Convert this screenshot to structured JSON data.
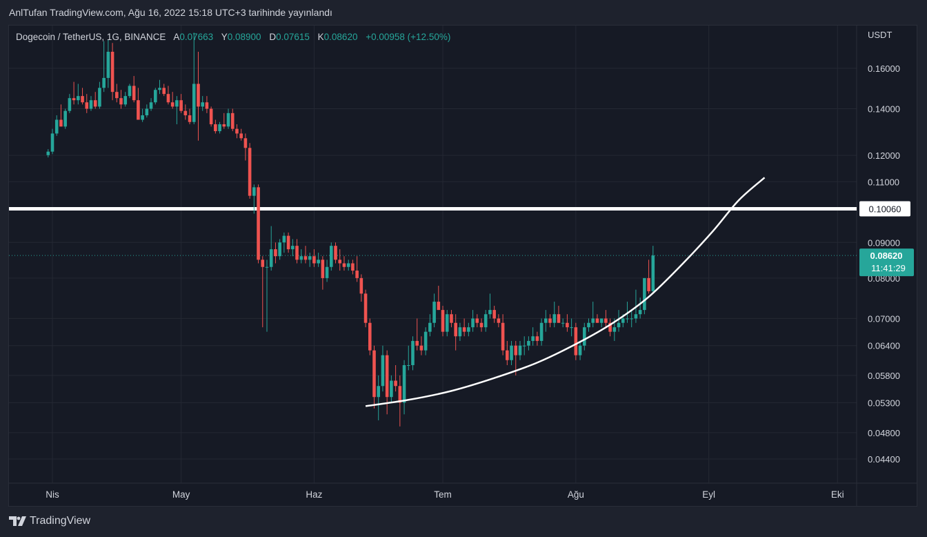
{
  "header": {
    "publish_text": "AnlTufan TradingView.com, Ağu 16, 2022 15:18 UTC+3 tarihinde yayınlandı"
  },
  "legend": {
    "symbol": "Dogecoin / TetherUS, 1G, BINANCE",
    "o_label": "A",
    "o_value": "0.07663",
    "h_label": "Y",
    "h_value": "0.08900",
    "l_label": "D",
    "l_value": "0.07615",
    "c_label": "K",
    "c_value": "0.08620",
    "change": "+0.00958 (+12.50%)"
  },
  "footer": {
    "brand": "TradingView"
  },
  "colors": {
    "up": "#26a69a",
    "down": "#ef5350",
    "grid": "#242833",
    "text": "#d1d4dc",
    "annotation": "#ffffff"
  },
  "chart_data": {
    "type": "candlestick",
    "y_scale": "log",
    "currency_label": "USDT",
    "y_ticks": [
      "0.16000",
      "0.14000",
      "0.12000",
      "0.11000",
      "0.09000",
      "0.08000",
      "0.07000",
      "0.06400",
      "0.05800",
      "0.05300",
      "0.04800",
      "0.04400"
    ],
    "x_ticks": [
      "Nis",
      "May",
      "Haz",
      "Tem",
      "Ağu",
      "Eyl",
      "Eki"
    ],
    "x_tick_dates": [
      "2022-04-01",
      "2022-05-01",
      "2022-06-01",
      "2022-07-01",
      "2022-08-01",
      "2022-09-01",
      "2022-10-01"
    ],
    "horizontal_line": {
      "price": 0.1006,
      "label": "0.10060"
    },
    "last_price": {
      "price": 0.0862,
      "label": "0.08620",
      "countdown": "11:41:29"
    },
    "curve": [
      {
        "date": "2022-06-13",
        "price": 0.0524
      },
      {
        "date": "2022-06-23",
        "price": 0.0535
      },
      {
        "date": "2022-07-03",
        "price": 0.0551
      },
      {
        "date": "2022-07-13",
        "price": 0.0575
      },
      {
        "date": "2022-07-23",
        "price": 0.0605
      },
      {
        "date": "2022-08-02",
        "price": 0.0648
      },
      {
        "date": "2022-08-10",
        "price": 0.0692
      },
      {
        "date": "2022-08-18",
        "price": 0.0752
      },
      {
        "date": "2022-08-26",
        "price": 0.084
      },
      {
        "date": "2022-09-02",
        "price": 0.0935
      },
      {
        "date": "2022-09-08",
        "price": 0.1035
      },
      {
        "date": "2022-09-14",
        "price": 0.1115
      }
    ],
    "candles": [
      {
        "d": "2022-03-31",
        "o": 0.1201,
        "h": 0.1225,
        "l": 0.1192,
        "c": 0.1215
      },
      {
        "d": "2022-04-01",
        "o": 0.1215,
        "h": 0.131,
        "l": 0.1205,
        "c": 0.129
      },
      {
        "d": "2022-04-02",
        "o": 0.129,
        "h": 0.137,
        "l": 0.128,
        "c": 0.135
      },
      {
        "d": "2022-04-03",
        "o": 0.135,
        "h": 0.142,
        "l": 0.132,
        "c": 0.132
      },
      {
        "d": "2022-04-04",
        "o": 0.132,
        "h": 0.14,
        "l": 0.131,
        "c": 0.139
      },
      {
        "d": "2022-04-05",
        "o": 0.139,
        "h": 0.147,
        "l": 0.138,
        "c": 0.145
      },
      {
        "d": "2022-04-06",
        "o": 0.145,
        "h": 0.153,
        "l": 0.142,
        "c": 0.144
      },
      {
        "d": "2022-04-07",
        "o": 0.144,
        "h": 0.152,
        "l": 0.142,
        "c": 0.146
      },
      {
        "d": "2022-04-08",
        "o": 0.146,
        "h": 0.15,
        "l": 0.142,
        "c": 0.143
      },
      {
        "d": "2022-04-09",
        "o": 0.143,
        "h": 0.147,
        "l": 0.138,
        "c": 0.14
      },
      {
        "d": "2022-04-10",
        "o": 0.14,
        "h": 0.146,
        "l": 0.139,
        "c": 0.144
      },
      {
        "d": "2022-04-11",
        "o": 0.144,
        "h": 0.148,
        "l": 0.14,
        "c": 0.141
      },
      {
        "d": "2022-04-12",
        "o": 0.141,
        "h": 0.153,
        "l": 0.14,
        "c": 0.15
      },
      {
        "d": "2022-04-13",
        "o": 0.15,
        "h": 0.175,
        "l": 0.148,
        "c": 0.155
      },
      {
        "d": "2022-04-14",
        "o": 0.155,
        "h": 0.176,
        "l": 0.15,
        "c": 0.169
      },
      {
        "d": "2022-04-15",
        "o": 0.169,
        "h": 0.174,
        "l": 0.144,
        "c": 0.148
      },
      {
        "d": "2022-04-16",
        "o": 0.148,
        "h": 0.152,
        "l": 0.143,
        "c": 0.145
      },
      {
        "d": "2022-04-17",
        "o": 0.145,
        "h": 0.149,
        "l": 0.14,
        "c": 0.142
      },
      {
        "d": "2022-04-18",
        "o": 0.142,
        "h": 0.148,
        "l": 0.141,
        "c": 0.146
      },
      {
        "d": "2022-04-19",
        "o": 0.146,
        "h": 0.152,
        "l": 0.145,
        "c": 0.151
      },
      {
        "d": "2022-04-20",
        "o": 0.151,
        "h": 0.156,
        "l": 0.143,
        "c": 0.144
      },
      {
        "d": "2022-04-21",
        "o": 0.144,
        "h": 0.15,
        "l": 0.135,
        "c": 0.135
      },
      {
        "d": "2022-04-22",
        "o": 0.135,
        "h": 0.14,
        "l": 0.134,
        "c": 0.137
      },
      {
        "d": "2022-04-23",
        "o": 0.137,
        "h": 0.142,
        "l": 0.136,
        "c": 0.14
      },
      {
        "d": "2022-04-24",
        "o": 0.14,
        "h": 0.145,
        "l": 0.139,
        "c": 0.143
      },
      {
        "d": "2022-04-25",
        "o": 0.143,
        "h": 0.15,
        "l": 0.142,
        "c": 0.149
      },
      {
        "d": "2022-04-26",
        "o": 0.149,
        "h": 0.154,
        "l": 0.147,
        "c": 0.15
      },
      {
        "d": "2022-04-27",
        "o": 0.15,
        "h": 0.152,
        "l": 0.146,
        "c": 0.147
      },
      {
        "d": "2022-04-28",
        "o": 0.147,
        "h": 0.151,
        "l": 0.142,
        "c": 0.143
      },
      {
        "d": "2022-04-29",
        "o": 0.143,
        "h": 0.148,
        "l": 0.14,
        "c": 0.141
      },
      {
        "d": "2022-04-30",
        "o": 0.141,
        "h": 0.146,
        "l": 0.133,
        "c": 0.144
      },
      {
        "d": "2022-05-01",
        "o": 0.144,
        "h": 0.147,
        "l": 0.138,
        "c": 0.139
      },
      {
        "d": "2022-05-02",
        "o": 0.139,
        "h": 0.142,
        "l": 0.135,
        "c": 0.137
      },
      {
        "d": "2022-05-03",
        "o": 0.137,
        "h": 0.14,
        "l": 0.133,
        "c": 0.134
      },
      {
        "d": "2022-05-04",
        "o": 0.134,
        "h": 0.18,
        "l": 0.133,
        "c": 0.152
      },
      {
        "d": "2022-05-05",
        "o": 0.152,
        "h": 0.169,
        "l": 0.126,
        "c": 0.141
      },
      {
        "d": "2022-05-06",
        "o": 0.141,
        "h": 0.146,
        "l": 0.139,
        "c": 0.143
      },
      {
        "d": "2022-05-07",
        "o": 0.143,
        "h": 0.146,
        "l": 0.138,
        "c": 0.14
      },
      {
        "d": "2022-05-08",
        "o": 0.14,
        "h": 0.141,
        "l": 0.132,
        "c": 0.133
      },
      {
        "d": "2022-05-09",
        "o": 0.133,
        "h": 0.135,
        "l": 0.129,
        "c": 0.13
      },
      {
        "d": "2022-05-10",
        "o": 0.13,
        "h": 0.134,
        "l": 0.129,
        "c": 0.133
      },
      {
        "d": "2022-05-11",
        "o": 0.133,
        "h": 0.138,
        "l": 0.131,
        "c": 0.132
      },
      {
        "d": "2022-05-12",
        "o": 0.132,
        "h": 0.14,
        "l": 0.131,
        "c": 0.138
      },
      {
        "d": "2022-05-13",
        "o": 0.138,
        "h": 0.14,
        "l": 0.13,
        "c": 0.131
      },
      {
        "d": "2022-05-14",
        "o": 0.131,
        "h": 0.133,
        "l": 0.127,
        "c": 0.129
      },
      {
        "d": "2022-05-15",
        "o": 0.129,
        "h": 0.131,
        "l": 0.126,
        "c": 0.127
      },
      {
        "d": "2022-05-16",
        "o": 0.127,
        "h": 0.129,
        "l": 0.118,
        "c": 0.123
      },
      {
        "d": "2022-05-17",
        "o": 0.123,
        "h": 0.125,
        "l": 0.104,
        "c": 0.105
      },
      {
        "d": "2022-05-18",
        "o": 0.105,
        "h": 0.109,
        "l": 0.099,
        "c": 0.108
      },
      {
        "d": "2022-05-19",
        "o": 0.108,
        "h": 0.109,
        "l": 0.084,
        "c": 0.085
      },
      {
        "d": "2022-05-20",
        "o": 0.085,
        "h": 0.086,
        "l": 0.068,
        "c": 0.083
      },
      {
        "d": "2022-05-21",
        "o": 0.083,
        "h": 0.085,
        "l": 0.067,
        "c": 0.083
      },
      {
        "d": "2022-05-22",
        "o": 0.083,
        "h": 0.095,
        "l": 0.082,
        "c": 0.088
      },
      {
        "d": "2022-05-23",
        "o": 0.088,
        "h": 0.09,
        "l": 0.084,
        "c": 0.086
      },
      {
        "d": "2022-05-24",
        "o": 0.086,
        "h": 0.091,
        "l": 0.085,
        "c": 0.09
      },
      {
        "d": "2022-05-25",
        "o": 0.09,
        "h": 0.093,
        "l": 0.087,
        "c": 0.092
      },
      {
        "d": "2022-05-26",
        "o": 0.092,
        "h": 0.093,
        "l": 0.087,
        "c": 0.088
      },
      {
        "d": "2022-05-27",
        "o": 0.088,
        "h": 0.091,
        "l": 0.086,
        "c": 0.089
      },
      {
        "d": "2022-05-28",
        "o": 0.089,
        "h": 0.091,
        "l": 0.084,
        "c": 0.085
      },
      {
        "d": "2022-05-29",
        "o": 0.085,
        "h": 0.088,
        "l": 0.084,
        "c": 0.086
      },
      {
        "d": "2022-05-30",
        "o": 0.086,
        "h": 0.089,
        "l": 0.084,
        "c": 0.085
      },
      {
        "d": "2022-05-31",
        "o": 0.085,
        "h": 0.087,
        "l": 0.083,
        "c": 0.086
      },
      {
        "d": "2022-06-01",
        "o": 0.086,
        "h": 0.088,
        "l": 0.083,
        "c": 0.084
      },
      {
        "d": "2022-06-02",
        "o": 0.084,
        "h": 0.087,
        "l": 0.083,
        "c": 0.085
      },
      {
        "d": "2022-06-03",
        "o": 0.085,
        "h": 0.086,
        "l": 0.077,
        "c": 0.08
      },
      {
        "d": "2022-06-04",
        "o": 0.08,
        "h": 0.085,
        "l": 0.079,
        "c": 0.083
      },
      {
        "d": "2022-06-05",
        "o": 0.083,
        "h": 0.09,
        "l": 0.082,
        "c": 0.089
      },
      {
        "d": "2022-06-06",
        "o": 0.089,
        "h": 0.09,
        "l": 0.084,
        "c": 0.085
      },
      {
        "d": "2022-06-07",
        "o": 0.085,
        "h": 0.088,
        "l": 0.082,
        "c": 0.084
      },
      {
        "d": "2022-06-08",
        "o": 0.084,
        "h": 0.086,
        "l": 0.082,
        "c": 0.083
      },
      {
        "d": "2022-06-09",
        "o": 0.083,
        "h": 0.085,
        "l": 0.082,
        "c": 0.084
      },
      {
        "d": "2022-06-10",
        "o": 0.084,
        "h": 0.085,
        "l": 0.081,
        "c": 0.082
      },
      {
        "d": "2022-06-11",
        "o": 0.082,
        "h": 0.086,
        "l": 0.079,
        "c": 0.08
      },
      {
        "d": "2022-06-12",
        "o": 0.08,
        "h": 0.081,
        "l": 0.074,
        "c": 0.076
      },
      {
        "d": "2022-06-13",
        "o": 0.076,
        "h": 0.077,
        "l": 0.068,
        "c": 0.069
      },
      {
        "d": "2022-06-14",
        "o": 0.069,
        "h": 0.07,
        "l": 0.062,
        "c": 0.063
      },
      {
        "d": "2022-06-15",
        "o": 0.063,
        "h": 0.064,
        "l": 0.052,
        "c": 0.054
      },
      {
        "d": "2022-06-16",
        "o": 0.054,
        "h": 0.058,
        "l": 0.05,
        "c": 0.056
      },
      {
        "d": "2022-06-17",
        "o": 0.056,
        "h": 0.064,
        "l": 0.055,
        "c": 0.062
      },
      {
        "d": "2022-06-18",
        "o": 0.062,
        "h": 0.063,
        "l": 0.051,
        "c": 0.054
      },
      {
        "d": "2022-06-19",
        "o": 0.054,
        "h": 0.058,
        "l": 0.053,
        "c": 0.057
      },
      {
        "d": "2022-06-20",
        "o": 0.057,
        "h": 0.06,
        "l": 0.055,
        "c": 0.056
      },
      {
        "d": "2022-06-21",
        "o": 0.056,
        "h": 0.058,
        "l": 0.049,
        "c": 0.053
      },
      {
        "d": "2022-06-22",
        "o": 0.053,
        "h": 0.061,
        "l": 0.051,
        "c": 0.06
      },
      {
        "d": "2022-06-23",
        "o": 0.06,
        "h": 0.064,
        "l": 0.059,
        "c": 0.06
      },
      {
        "d": "2022-06-24",
        "o": 0.06,
        "h": 0.066,
        "l": 0.059,
        "c": 0.065
      },
      {
        "d": "2022-06-25",
        "o": 0.065,
        "h": 0.07,
        "l": 0.063,
        "c": 0.064
      },
      {
        "d": "2022-06-26",
        "o": 0.064,
        "h": 0.066,
        "l": 0.062,
        "c": 0.063
      },
      {
        "d": "2022-06-27",
        "o": 0.063,
        "h": 0.068,
        "l": 0.062,
        "c": 0.067
      },
      {
        "d": "2022-06-28",
        "o": 0.067,
        "h": 0.071,
        "l": 0.066,
        "c": 0.069
      },
      {
        "d": "2022-06-29",
        "o": 0.069,
        "h": 0.076,
        "l": 0.068,
        "c": 0.074
      },
      {
        "d": "2022-06-30",
        "o": 0.074,
        "h": 0.078,
        "l": 0.072,
        "c": 0.072
      },
      {
        "d": "2022-07-01",
        "o": 0.072,
        "h": 0.073,
        "l": 0.066,
        "c": 0.067
      },
      {
        "d": "2022-07-02",
        "o": 0.067,
        "h": 0.072,
        "l": 0.066,
        "c": 0.071
      },
      {
        "d": "2022-07-03",
        "o": 0.071,
        "h": 0.072,
        "l": 0.068,
        "c": 0.069
      },
      {
        "d": "2022-07-04",
        "o": 0.069,
        "h": 0.071,
        "l": 0.063,
        "c": 0.066
      },
      {
        "d": "2022-07-05",
        "o": 0.066,
        "h": 0.069,
        "l": 0.065,
        "c": 0.068
      },
      {
        "d": "2022-07-06",
        "o": 0.068,
        "h": 0.07,
        "l": 0.066,
        "c": 0.067
      },
      {
        "d": "2022-07-07",
        "o": 0.067,
        "h": 0.069,
        "l": 0.066,
        "c": 0.068
      },
      {
        "d": "2022-07-08",
        "o": 0.068,
        "h": 0.072,
        "l": 0.067,
        "c": 0.07
      },
      {
        "d": "2022-07-09",
        "o": 0.07,
        "h": 0.071,
        "l": 0.068,
        "c": 0.069
      },
      {
        "d": "2022-07-10",
        "o": 0.069,
        "h": 0.07,
        "l": 0.067,
        "c": 0.068
      },
      {
        "d": "2022-07-11",
        "o": 0.068,
        "h": 0.072,
        "l": 0.067,
        "c": 0.071
      },
      {
        "d": "2022-07-12",
        "o": 0.071,
        "h": 0.076,
        "l": 0.07,
        "c": 0.072
      },
      {
        "d": "2022-07-13",
        "o": 0.072,
        "h": 0.073,
        "l": 0.069,
        "c": 0.07
      },
      {
        "d": "2022-07-14",
        "o": 0.07,
        "h": 0.071,
        "l": 0.068,
        "c": 0.069
      },
      {
        "d": "2022-07-15",
        "o": 0.069,
        "h": 0.071,
        "l": 0.062,
        "c": 0.063
      },
      {
        "d": "2022-07-16",
        "o": 0.063,
        "h": 0.065,
        "l": 0.06,
        "c": 0.061
      },
      {
        "d": "2022-07-17",
        "o": 0.061,
        "h": 0.065,
        "l": 0.06,
        "c": 0.064
      },
      {
        "d": "2022-07-18",
        "o": 0.064,
        "h": 0.065,
        "l": 0.058,
        "c": 0.062
      },
      {
        "d": "2022-07-19",
        "o": 0.062,
        "h": 0.065,
        "l": 0.061,
        "c": 0.064
      },
      {
        "d": "2022-07-20",
        "o": 0.064,
        "h": 0.066,
        "l": 0.062,
        "c": 0.064
      },
      {
        "d": "2022-07-21",
        "o": 0.064,
        "h": 0.066,
        "l": 0.063,
        "c": 0.065
      },
      {
        "d": "2022-07-22",
        "o": 0.065,
        "h": 0.068,
        "l": 0.064,
        "c": 0.066
      },
      {
        "d": "2022-07-23",
        "o": 0.066,
        "h": 0.067,
        "l": 0.064,
        "c": 0.065
      },
      {
        "d": "2022-07-24",
        "o": 0.065,
        "h": 0.07,
        "l": 0.064,
        "c": 0.069
      },
      {
        "d": "2022-07-25",
        "o": 0.069,
        "h": 0.072,
        "l": 0.067,
        "c": 0.07
      },
      {
        "d": "2022-07-26",
        "o": 0.07,
        "h": 0.071,
        "l": 0.068,
        "c": 0.069
      },
      {
        "d": "2022-07-27",
        "o": 0.069,
        "h": 0.074,
        "l": 0.068,
        "c": 0.071
      },
      {
        "d": "2022-07-28",
        "o": 0.071,
        "h": 0.073,
        "l": 0.069,
        "c": 0.069
      },
      {
        "d": "2022-07-29",
        "o": 0.069,
        "h": 0.07,
        "l": 0.068,
        "c": 0.069
      },
      {
        "d": "2022-07-30",
        "o": 0.069,
        "h": 0.071,
        "l": 0.067,
        "c": 0.068
      },
      {
        "d": "2022-07-31",
        "o": 0.068,
        "h": 0.07,
        "l": 0.066,
        "c": 0.068
      },
      {
        "d": "2022-08-01",
        "o": 0.068,
        "h": 0.069,
        "l": 0.061,
        "c": 0.062
      },
      {
        "d": "2022-08-02",
        "o": 0.062,
        "h": 0.065,
        "l": 0.061,
        "c": 0.064
      },
      {
        "d": "2022-08-03",
        "o": 0.064,
        "h": 0.069,
        "l": 0.063,
        "c": 0.068
      },
      {
        "d": "2022-08-04",
        "o": 0.068,
        "h": 0.07,
        "l": 0.067,
        "c": 0.069
      },
      {
        "d": "2022-08-05",
        "o": 0.069,
        "h": 0.074,
        "l": 0.068,
        "c": 0.07
      },
      {
        "d": "2022-08-06",
        "o": 0.07,
        "h": 0.071,
        "l": 0.069,
        "c": 0.069
      },
      {
        "d": "2022-08-07",
        "o": 0.069,
        "h": 0.07,
        "l": 0.068,
        "c": 0.07
      },
      {
        "d": "2022-08-08",
        "o": 0.07,
        "h": 0.072,
        "l": 0.068,
        "c": 0.069
      },
      {
        "d": "2022-08-09",
        "o": 0.069,
        "h": 0.07,
        "l": 0.066,
        "c": 0.067
      },
      {
        "d": "2022-08-10",
        "o": 0.067,
        "h": 0.07,
        "l": 0.065,
        "c": 0.068
      },
      {
        "d": "2022-08-11",
        "o": 0.068,
        "h": 0.072,
        "l": 0.067,
        "c": 0.069
      },
      {
        "d": "2022-08-12",
        "o": 0.069,
        "h": 0.071,
        "l": 0.068,
        "c": 0.07
      },
      {
        "d": "2022-08-13",
        "o": 0.07,
        "h": 0.074,
        "l": 0.069,
        "c": 0.07
      },
      {
        "d": "2022-08-14",
        "o": 0.07,
        "h": 0.072,
        "l": 0.068,
        "c": 0.07
      },
      {
        "d": "2022-08-15",
        "o": 0.07,
        "h": 0.077,
        "l": 0.069,
        "c": 0.071
      },
      {
        "d": "2022-08-16",
        "o": 0.071,
        "h": 0.075,
        "l": 0.07,
        "c": 0.072
      },
      {
        "d": "2022-08-17",
        "o": 0.072,
        "h": 0.08,
        "l": 0.071,
        "c": 0.08
      },
      {
        "d": "2022-08-18",
        "o": 0.08,
        "h": 0.085,
        "l": 0.076,
        "c": 0.0766
      },
      {
        "d": "2022-08-19",
        "o": 0.07663,
        "h": 0.089,
        "l": 0.07615,
        "c": 0.0862
      }
    ]
  }
}
